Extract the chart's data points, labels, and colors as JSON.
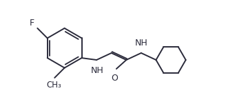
{
  "line_color": "#2a2a3a",
  "bg_color": "#ffffff",
  "line_width": 1.4,
  "font_size": 9,
  "figsize": [
    3.57,
    1.51
  ],
  "dpi": 100,
  "xlim": [
    0.0,
    10.5
  ],
  "ylim": [
    -1.0,
    4.2
  ]
}
